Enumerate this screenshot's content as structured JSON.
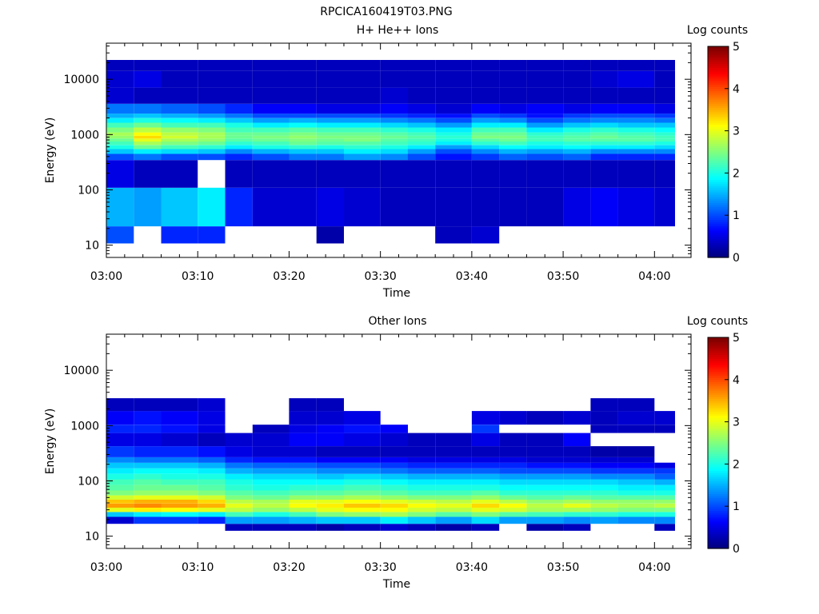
{
  "figure_title": "RPCICA160419T03.PNG",
  "colormap_stops": [
    "#00007f",
    "#0000ff",
    "#007fff",
    "#00ffff",
    "#7fff7f",
    "#ffff00",
    "#ff7f00",
    "#ff0000",
    "#7f0000"
  ],
  "chart_data": [
    {
      "type": "heatmap",
      "title": "H+ He++ Ions",
      "xlabel": "Time",
      "ylabel": "Energy (eV)",
      "colorbar_label": "Log counts",
      "colorbar_range": [
        0,
        5
      ],
      "colorbar_ticks": [
        "0",
        "1",
        "2",
        "3",
        "4",
        "5"
      ],
      "x_range_minutes": [
        0,
        64
      ],
      "x_tick_labels": [
        "03:00",
        "03:10",
        "03:20",
        "03:30",
        "03:40",
        "03:50",
        "04:00"
      ],
      "y_scale": "log",
      "y_range": [
        6,
        45000
      ],
      "y_tick_labels": [
        "10",
        "100",
        "1000",
        "10000"
      ],
      "time_bins": [
        "03:00",
        "03:03",
        "03:06",
        "03:10",
        "03:13",
        "03:16",
        "03:20",
        "03:23",
        "03:26",
        "03:30",
        "03:33",
        "03:36",
        "03:40",
        "03:43",
        "03:46",
        "03:50",
        "03:53",
        "03:56",
        "04:00"
      ],
      "energy_bins": [
        12,
        40,
        300,
        400,
        500,
        600,
        700,
        800,
        900,
        1000,
        1200,
        1500,
        1800,
        2200,
        2600,
        5000,
        10000,
        20000
      ],
      "values": [
        [
          1.0,
          1.5,
          0.5,
          1.0,
          1.6,
          2.0,
          2.2,
          2.4,
          2.6,
          2.7,
          2.5,
          2.2,
          1.8,
          1.5,
          1.2,
          0.4,
          0.4,
          0.3
        ],
        [
          0,
          1.4,
          0.3,
          1.2,
          1.8,
          2.4,
          2.7,
          3.0,
          3.3,
          3.1,
          2.8,
          2.4,
          2.0,
          1.6,
          1.2,
          0.3,
          0.5,
          0.3
        ],
        [
          0.8,
          1.6,
          0.3,
          1.0,
          1.7,
          2.2,
          2.5,
          2.7,
          2.9,
          2.8,
          2.6,
          2.2,
          1.9,
          1.5,
          1.1,
          0.3,
          0.3,
          0.3
        ],
        [
          0.8,
          1.8,
          0,
          1.0,
          1.6,
          2.1,
          2.4,
          2.6,
          2.7,
          2.7,
          2.5,
          2.2,
          1.8,
          1.4,
          1.0,
          0.3,
          0.3,
          0.3
        ],
        [
          0,
          0.8,
          0.3,
          0.8,
          1.3,
          1.8,
          2.1,
          2.3,
          2.4,
          2.4,
          2.2,
          2.0,
          1.6,
          1.2,
          0.8,
          0.3,
          0.3,
          0.3
        ],
        [
          0,
          0.4,
          0.3,
          1.0,
          1.5,
          2.0,
          2.2,
          2.4,
          2.5,
          2.4,
          2.2,
          1.8,
          1.4,
          1.0,
          0.6,
          0.3,
          0.3,
          0.3
        ],
        [
          0,
          0.4,
          0.3,
          1.2,
          1.6,
          2.1,
          2.4,
          2.5,
          2.6,
          2.5,
          2.3,
          1.9,
          1.5,
          1.0,
          0.6,
          0.3,
          0.3,
          0.3
        ],
        [
          0.2,
          0.5,
          0.3,
          1.2,
          1.6,
          2.0,
          2.3,
          2.4,
          2.5,
          2.4,
          2.2,
          1.8,
          1.4,
          1.0,
          0.5,
          0.3,
          0.3,
          0.3
        ],
        [
          0,
          0.4,
          0.3,
          1.4,
          1.8,
          2.1,
          2.3,
          2.5,
          2.5,
          2.4,
          2.2,
          1.8,
          1.4,
          1.0,
          0.5,
          0.3,
          0.3,
          0.3
        ],
        [
          0,
          0.3,
          0.3,
          1.3,
          1.7,
          2.0,
          2.2,
          2.3,
          2.4,
          2.3,
          2.1,
          1.7,
          1.3,
          0.9,
          0.6,
          0.4,
          0.3,
          0.3
        ],
        [
          0,
          0.3,
          0.3,
          1.0,
          1.4,
          1.8,
          2.1,
          2.2,
          2.3,
          2.2,
          2.0,
          1.6,
          1.2,
          0.8,
          0.5,
          0.3,
          0.3,
          0.3
        ],
        [
          0.3,
          0.3,
          0.3,
          0.7,
          1.0,
          1.4,
          1.8,
          2.0,
          2.1,
          2.0,
          1.8,
          1.4,
          1.0,
          0.7,
          0.4,
          0.3,
          0.3,
          0.3
        ],
        [
          0.4,
          0.3,
          0.3,
          0.9,
          1.3,
          1.7,
          2.1,
          2.3,
          2.5,
          2.4,
          2.2,
          1.8,
          1.4,
          1.0,
          0.6,
          0.3,
          0.3,
          0.3
        ],
        [
          0,
          0.3,
          0.3,
          1.1,
          1.5,
          1.9,
          2.2,
          2.4,
          2.5,
          2.4,
          2.2,
          1.8,
          1.3,
          0.9,
          0.5,
          0.3,
          0.3,
          0.3
        ],
        [
          0,
          0.3,
          0.3,
          1.0,
          1.4,
          1.8,
          2.0,
          2.2,
          2.2,
          2.1,
          1.8,
          1.4,
          1.0,
          0.7,
          0.6,
          0.3,
          0.3,
          0.3
        ],
        [
          0,
          0.5,
          0.3,
          1.1,
          1.5,
          1.9,
          2.1,
          2.3,
          2.3,
          2.2,
          2.0,
          1.6,
          1.2,
          0.9,
          0.5,
          0.3,
          0.3,
          0.3
        ],
        [
          0,
          0.6,
          0.3,
          0.8,
          1.3,
          1.8,
          2.1,
          2.3,
          2.4,
          2.3,
          2.1,
          1.7,
          1.3,
          1.0,
          0.6,
          0.3,
          0.4,
          0.3
        ],
        [
          0,
          0.5,
          0.3,
          0.8,
          1.3,
          1.8,
          2.1,
          2.3,
          2.3,
          2.2,
          2.0,
          1.6,
          1.3,
          1.0,
          0.6,
          0.3,
          0.5,
          0.3
        ],
        [
          0,
          0.4,
          0.3,
          0.8,
          1.3,
          1.7,
          2.0,
          2.2,
          2.2,
          2.1,
          1.9,
          1.6,
          1.2,
          0.9,
          0.5,
          0.3,
          0.3,
          0.3
        ]
      ]
    },
    {
      "type": "heatmap",
      "title": "Other Ions",
      "xlabel": "Time",
      "ylabel": "Energy (eV)",
      "colorbar_label": "Log counts",
      "colorbar_range": [
        0,
        5
      ],
      "colorbar_ticks": [
        "0",
        "1",
        "2",
        "3",
        "4",
        "5"
      ],
      "x_range_minutes": [
        0,
        64
      ],
      "x_tick_labels": [
        "03:00",
        "03:10",
        "03:20",
        "03:30",
        "03:40",
        "03:50",
        "04:00"
      ],
      "y_scale": "log",
      "y_range": [
        6,
        45000
      ],
      "y_tick_labels": [
        "10",
        "100",
        "1000",
        "10000"
      ],
      "time_bins": [
        "03:00",
        "03:03",
        "03:06",
        "03:10",
        "03:13",
        "03:16",
        "03:20",
        "03:23",
        "03:26",
        "03:30",
        "03:33",
        "03:36",
        "03:40",
        "03:43",
        "03:46",
        "03:50",
        "03:53",
        "03:56",
        "04:00"
      ],
      "energy_bins": [
        14,
        20,
        25,
        30,
        36,
        42,
        50,
        60,
        75,
        95,
        120,
        150,
        190,
        240,
        300,
        600,
        900,
        1200,
        2800
      ],
      "values": [
        [
          0,
          0.4,
          1.6,
          3.0,
          3.6,
          3.4,
          2.9,
          2.5,
          2.3,
          2.2,
          2.0,
          1.8,
          1.6,
          1.3,
          0.9,
          0.5,
          0.8,
          0.6,
          0.3
        ],
        [
          0,
          0.9,
          1.8,
          3.2,
          3.7,
          3.5,
          3.0,
          2.6,
          2.4,
          2.3,
          2.1,
          1.9,
          1.6,
          1.2,
          0.8,
          0.5,
          0.8,
          0.7,
          0.3
        ],
        [
          0,
          0.9,
          1.9,
          3.1,
          3.6,
          3.5,
          3.0,
          2.6,
          2.4,
          2.2,
          2.0,
          1.9,
          1.6,
          1.2,
          0.8,
          0.4,
          0.7,
          0.6,
          0.3
        ],
        [
          0,
          0.8,
          1.8,
          3.0,
          3.5,
          3.3,
          2.9,
          2.5,
          2.3,
          2.2,
          2.0,
          1.8,
          1.5,
          1.1,
          0.7,
          0.3,
          0.5,
          0.5,
          0.4
        ],
        [
          0.3,
          1.4,
          2.2,
          2.8,
          3.0,
          2.8,
          2.5,
          2.3,
          2.1,
          2.0,
          1.8,
          1.5,
          1.2,
          0.8,
          0.5,
          0.4,
          0,
          0,
          0
        ],
        [
          0.3,
          1.4,
          2.0,
          2.6,
          2.8,
          2.7,
          2.4,
          2.2,
          2.0,
          1.9,
          1.7,
          1.4,
          1.1,
          0.7,
          0.4,
          0.4,
          0.3,
          0,
          0
        ],
        [
          0.3,
          1.5,
          2.2,
          2.8,
          3.1,
          3.0,
          2.6,
          2.3,
          2.1,
          1.9,
          1.7,
          1.4,
          1.1,
          0.7,
          0.4,
          0.6,
          0.5,
          0.4,
          0.3
        ],
        [
          0.2,
          1.6,
          2.5,
          3.0,
          3.2,
          3.0,
          2.6,
          2.3,
          2.1,
          1.9,
          1.6,
          1.3,
          1.0,
          0.6,
          0.3,
          0.6,
          0.6,
          0.4,
          0.3
        ],
        [
          0.3,
          1.6,
          2.6,
          3.1,
          3.4,
          3.1,
          2.7,
          2.4,
          2.2,
          2.0,
          1.7,
          1.3,
          1.0,
          0.6,
          0.3,
          0.5,
          0.7,
          0.5,
          0
        ],
        [
          0.4,
          1.8,
          2.7,
          3.1,
          3.3,
          3.0,
          2.6,
          2.3,
          2.1,
          1.9,
          1.6,
          1.2,
          0.9,
          0.6,
          0.3,
          0.4,
          0.6,
          0,
          0
        ],
        [
          0.3,
          1.6,
          2.5,
          2.9,
          3.1,
          2.9,
          2.5,
          2.2,
          2.0,
          1.8,
          1.5,
          1.1,
          0.8,
          0.5,
          0.3,
          0.3,
          0,
          0,
          0
        ],
        [
          0.2,
          1.4,
          2.3,
          2.8,
          3.0,
          2.8,
          2.5,
          2.2,
          2.0,
          1.8,
          1.5,
          1.1,
          0.8,
          0.5,
          0.3,
          0.3,
          0,
          0,
          0
        ],
        [
          0.3,
          1.7,
          2.5,
          3.0,
          3.3,
          3.0,
          2.6,
          2.3,
          2.0,
          1.8,
          1.5,
          1.1,
          0.8,
          0.5,
          0.3,
          0.5,
          0.9,
          0.5,
          0
        ],
        [
          0,
          1.4,
          2.3,
          2.9,
          3.1,
          2.8,
          2.4,
          2.1,
          1.9,
          1.7,
          1.4,
          1.0,
          0.8,
          0.5,
          0.3,
          0.3,
          0,
          0.4,
          0
        ],
        [
          0.2,
          1.4,
          2.2,
          2.7,
          2.8,
          2.6,
          2.3,
          2.1,
          1.9,
          1.7,
          1.4,
          1.0,
          0.7,
          0.4,
          0.3,
          0.3,
          0,
          0.3,
          0
        ],
        [
          0.3,
          1.3,
          2.1,
          2.7,
          3.0,
          2.7,
          2.4,
          2.1,
          1.9,
          1.7,
          1.4,
          1.0,
          0.7,
          0.4,
          0.3,
          0.6,
          0,
          0.4,
          0
        ],
        [
          0,
          1.4,
          2.1,
          2.6,
          2.8,
          2.6,
          2.3,
          2.1,
          1.9,
          1.7,
          1.3,
          0.9,
          0.6,
          0.4,
          0.2,
          0,
          0.3,
          0.3,
          0.3
        ],
        [
          0,
          1.3,
          2.0,
          2.5,
          2.7,
          2.6,
          2.3,
          2.0,
          1.8,
          1.6,
          1.3,
          0.9,
          0.6,
          0.4,
          0.2,
          0,
          0.3,
          0.4,
          0.3
        ],
        [
          0.3,
          1.3,
          2.0,
          2.5,
          2.8,
          2.6,
          2.3,
          2.0,
          1.8,
          1.5,
          1.1,
          0.9,
          0.5,
          0,
          0,
          0,
          0.3,
          0.4,
          0
        ]
      ]
    }
  ]
}
